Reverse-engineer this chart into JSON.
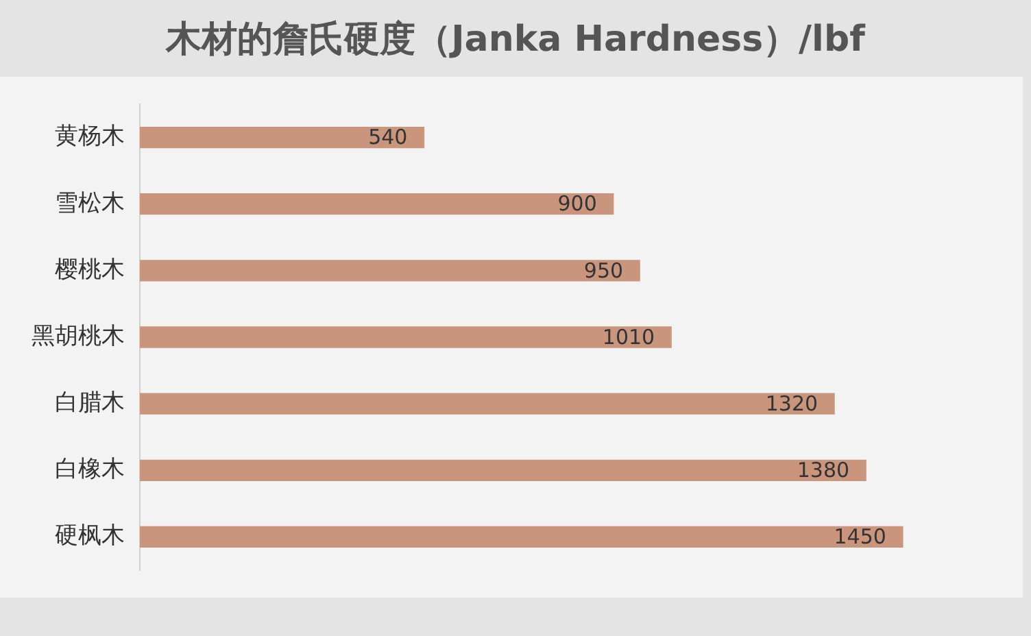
{
  "chart_data": {
    "type": "bar",
    "orientation": "horizontal",
    "title": "木材的詹氏硬度（Janka Hardness）/lbf",
    "categories": [
      "黄杨木",
      "雪松木",
      "樱桃木",
      "黑胡桃木",
      "白腊木",
      "白橡木",
      "硬枫木"
    ],
    "values": [
      540,
      900,
      950,
      1010,
      1320,
      1380,
      1450
    ],
    "color": "#c9957c",
    "data_labels": true,
    "legend": false
  }
}
